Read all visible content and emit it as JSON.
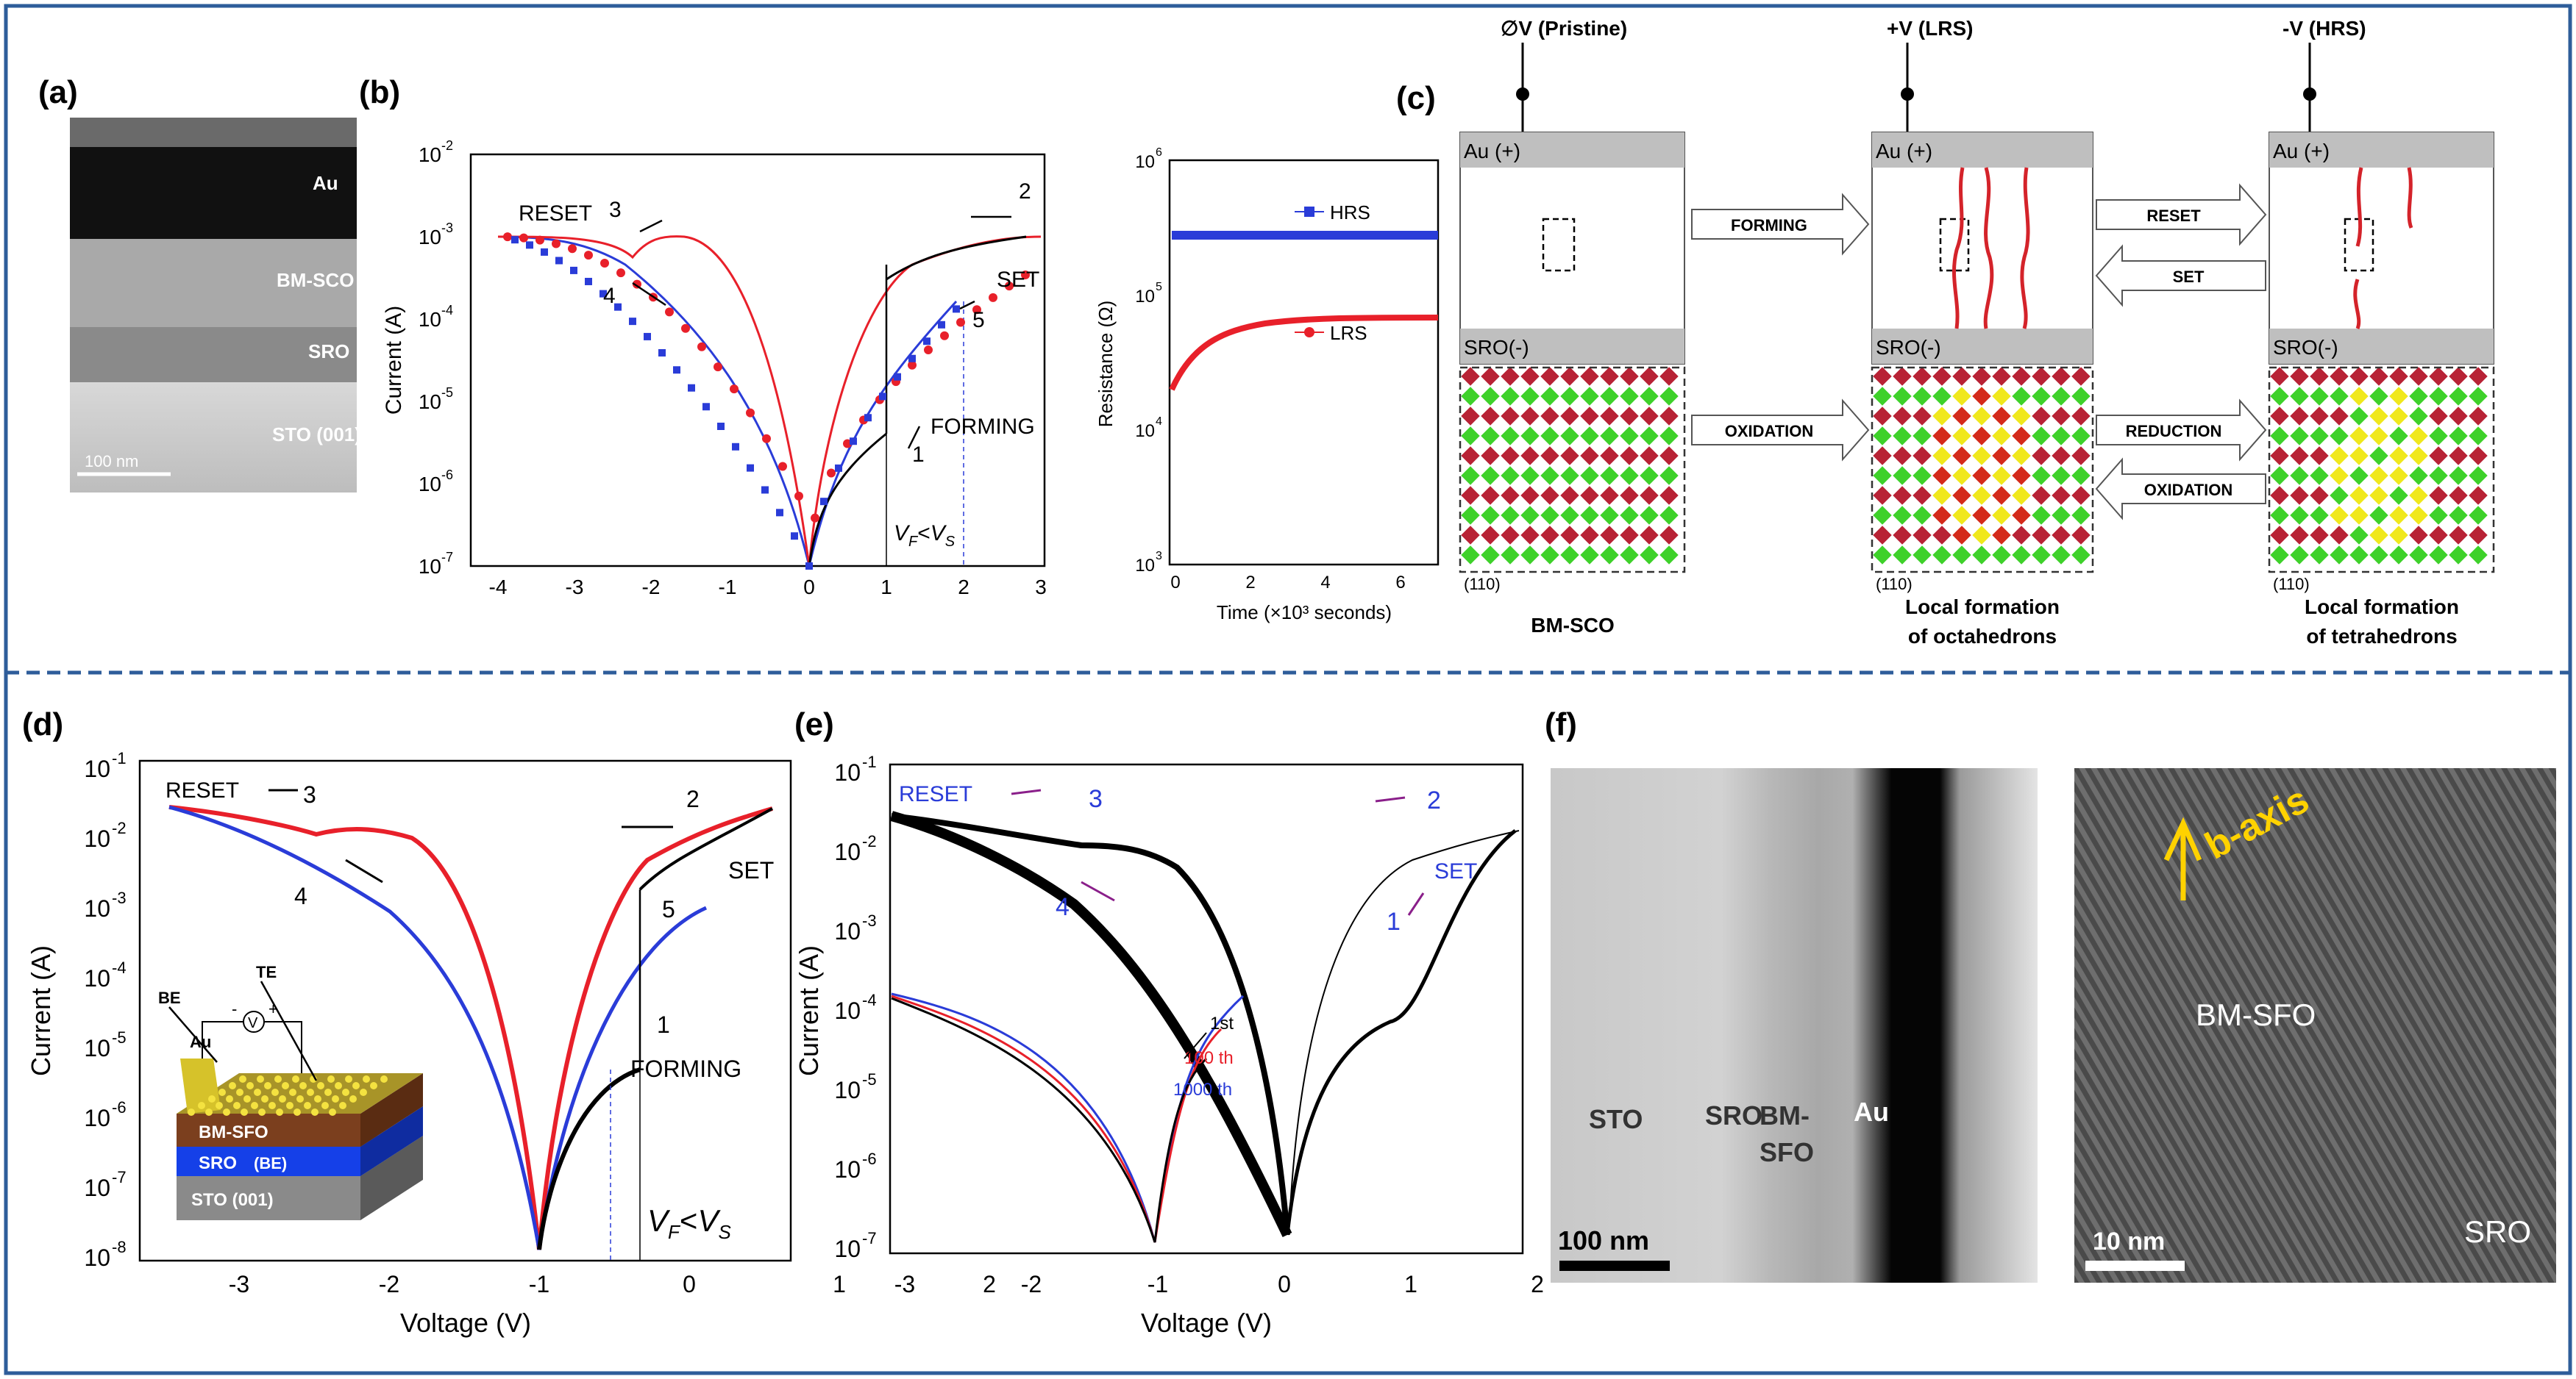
{
  "colors": {
    "frame": "#2e5d9a",
    "red": "#e8202a",
    "blue": "#2a3cd8",
    "black": "#000000",
    "purple": "#8a1f8a",
    "gray": "#bfbfbf",
    "crystal_red": "#b82235",
    "crystal_green": "#3ed12a",
    "crystal_yellow": "#f0e81c"
  },
  "panel_a": {
    "letter": "(a)",
    "layers": [
      "Au",
      "BM-SCO",
      "SRO",
      "STO (001)"
    ],
    "scale": "100 nm"
  },
  "panel_b": {
    "letter": "(b)",
    "ylabel": "Current (A)",
    "yticks": [
      "10",
      "10",
      "10",
      "10",
      "10",
      "10"
    ],
    "yexps": [
      "-2",
      "-3",
      "-4",
      "-5",
      "-6",
      "-7"
    ],
    "xticks": [
      "-4",
      "-3",
      "-2",
      "-1",
      "0",
      "1",
      "2",
      "3"
    ],
    "labels": {
      "reset": "RESET",
      "set": "SET",
      "forming": "FORMING",
      "n1": "1",
      "n2": "2",
      "n3": "3",
      "n4": "4",
      "n5": "5",
      "vf": "V",
      "vf_sub": "F",
      "lt": "<",
      "vs": "V",
      "vs_sub": "S"
    }
  },
  "panel_b2": {
    "ylabel": "Resistance (Ω)",
    "xlabel": "Time (×10³ seconds)",
    "yticks": [
      "10",
      "10",
      "10",
      "10"
    ],
    "yexps": [
      "6",
      "5",
      "4",
      "3"
    ],
    "xticks": [
      "0",
      "2",
      "4",
      "6"
    ],
    "legend": [
      "HRS",
      "LRS"
    ]
  },
  "panel_c": {
    "letter": "(c)",
    "states": [
      "∅V (Pristine)",
      "+V (LRS)",
      "-V (HRS)"
    ],
    "top_electrode": "Au (+)",
    "bottom_electrode": "SRO(-)",
    "arrows": [
      "FORMING",
      "RESET",
      "SET",
      "OXIDATION",
      "REDUCTION",
      "OXIDATION"
    ],
    "orient": "(110)",
    "captions": [
      "BM-SCO",
      "Local formation",
      "of octahedrons",
      "Local formation",
      "of tetrahedrons"
    ]
  },
  "panel_d": {
    "letter": "(d)",
    "ylabel": "Current (A)",
    "xlabel": "Voltage (V)",
    "yticks": [
      "10",
      "10",
      "10",
      "10",
      "10",
      "10",
      "10",
      "10"
    ],
    "yexps": [
      "-1",
      "-2",
      "-3",
      "-4",
      "-5",
      "-6",
      "-7",
      "-8"
    ],
    "xticks": [
      "-3",
      "-2",
      "-1",
      "0",
      "1",
      "2"
    ],
    "labels": {
      "reset": "RESET",
      "set": "SET",
      "forming": "FORMING",
      "n1": "1",
      "n2": "2",
      "n3": "3",
      "n4": "4",
      "n5": "5",
      "vf": "V",
      "vf_sub": "F",
      "lt": "<",
      "vs": "V",
      "vs_sub": "S"
    },
    "inset": {
      "be": "BE",
      "te": "TE",
      "au": "Au",
      "v": "V",
      "plus": "+",
      "minus": "-",
      "layers": [
        "BM-SFO",
        "SRO",
        "(BE)",
        "STO (001)"
      ]
    }
  },
  "panel_e": {
    "letter": "(e)",
    "ylabel": "Current (A)",
    "xlabel": "Voltage (V)",
    "yticks": [
      "10",
      "10",
      "10",
      "10",
      "10",
      "10",
      "10"
    ],
    "yexps": [
      "-1",
      "-2",
      "-3",
      "-4",
      "-5",
      "-6",
      "-7"
    ],
    "xticks": [
      "-3",
      "-2",
      "-1",
      "0",
      "1",
      "2"
    ],
    "labels": {
      "reset": "RESET",
      "set": "SET",
      "n1": "1",
      "n2": "2",
      "n3": "3",
      "n4": "4",
      "c1": "1st",
      "c100": "100 th",
      "c1000": "1000 th"
    }
  },
  "panel_f": {
    "letter": "(f)",
    "left": {
      "labels": [
        "STO",
        "SRO",
        "BM-",
        "SFO",
        "Au"
      ],
      "scale": "100 nm"
    },
    "right": {
      "axis": "b-axis",
      "labels": [
        "BM-SFO",
        "SRO"
      ],
      "scale": "10 nm"
    }
  }
}
